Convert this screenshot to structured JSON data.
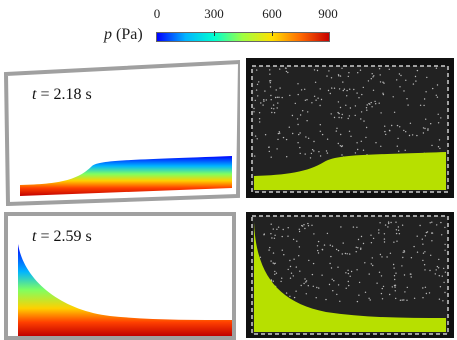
{
  "colorbar": {
    "label_var": "p",
    "label_unit": "(Pa)",
    "ticks": [
      "0",
      "300",
      "600",
      "900"
    ],
    "tick_values": [
      0,
      300,
      600,
      900
    ],
    "min": 0,
    "max": 900,
    "colors": [
      "#0000ff",
      "#00b4ff",
      "#00ffd0",
      "#a0ff40",
      "#ffe000",
      "#ff6a00",
      "#c80000"
    ]
  },
  "panels": [
    {
      "t_var": "t",
      "t_value": "= 2.18 s"
    },
    {
      "t_var": "t",
      "t_value": "= 2.59 s"
    }
  ]
}
